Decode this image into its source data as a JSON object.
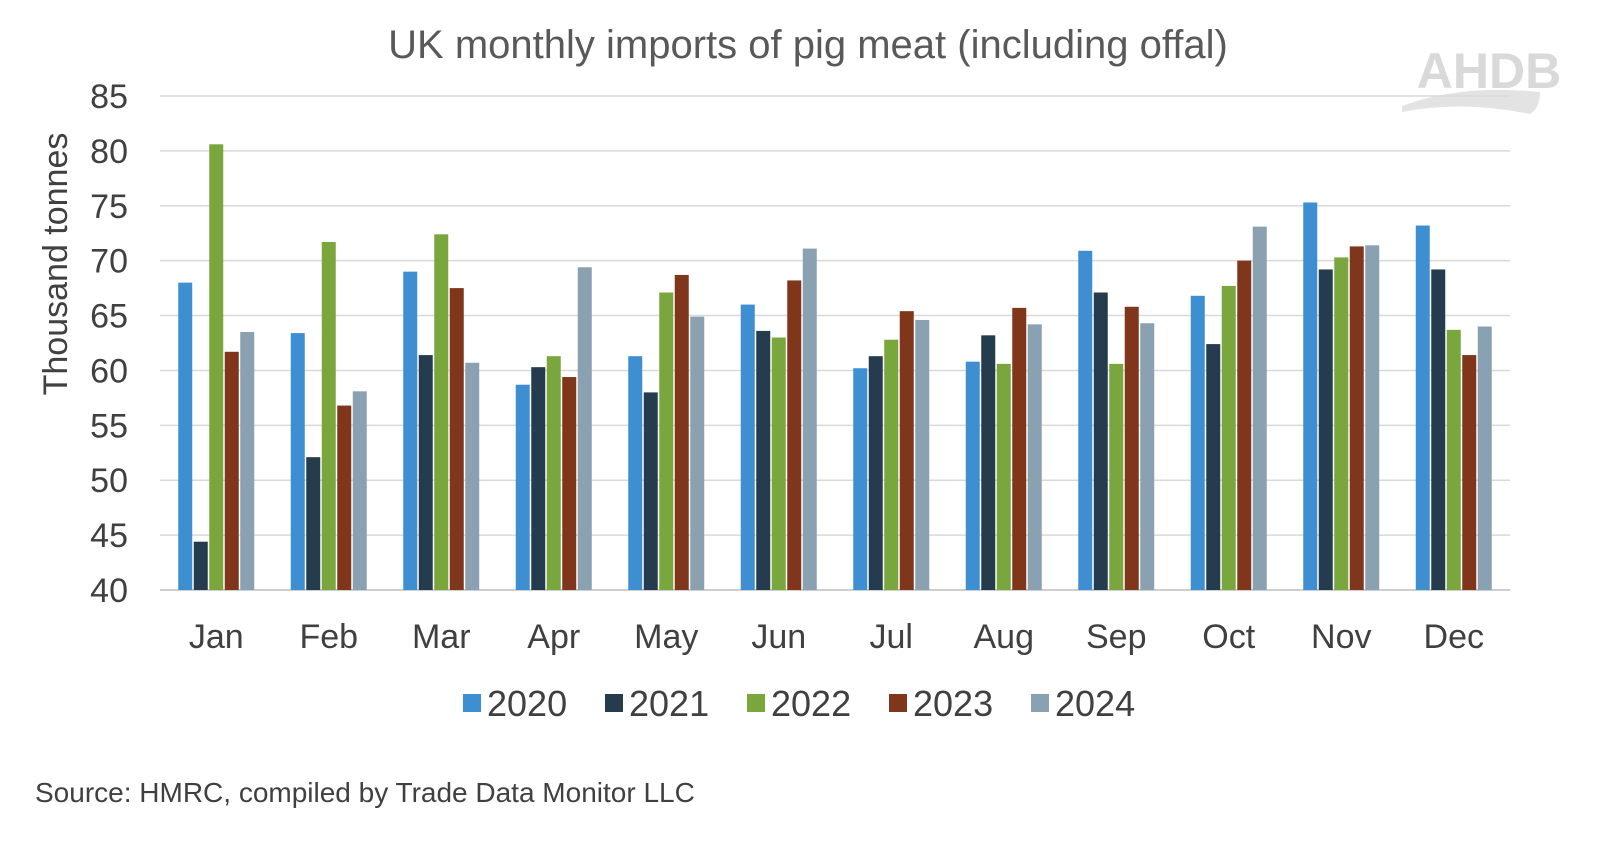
{
  "chart_data": {
    "type": "bar",
    "title": "UK monthly imports of pig meat (including offal)",
    "ylabel": "Thousand tonnes",
    "xlabel": "",
    "ylim": [
      40,
      85
    ],
    "yticks": [
      40,
      45,
      50,
      55,
      60,
      65,
      70,
      75,
      80,
      85
    ],
    "grid": true,
    "legend_position": "bottom",
    "categories": [
      "Jan",
      "Feb",
      "Mar",
      "Apr",
      "May",
      "Jun",
      "Jul",
      "Aug",
      "Sep",
      "Oct",
      "Nov",
      "Dec"
    ],
    "series": [
      {
        "name": "2020",
        "color": "#3d8fd1",
        "values": [
          68.0,
          63.4,
          69.0,
          58.7,
          61.3,
          66.0,
          60.2,
          60.8,
          70.9,
          66.8,
          75.3,
          73.2
        ]
      },
      {
        "name": "2021",
        "color": "#253c4e",
        "values": [
          44.4,
          52.1,
          61.4,
          60.3,
          58.0,
          63.6,
          61.3,
          63.2,
          67.1,
          62.4,
          69.2,
          69.2
        ]
      },
      {
        "name": "2022",
        "color": "#7aa63e",
        "values": [
          80.6,
          71.7,
          72.4,
          61.3,
          67.1,
          63.0,
          62.8,
          60.6,
          60.6,
          67.7,
          70.3,
          63.7
        ]
      },
      {
        "name": "2023",
        "color": "#80361b",
        "values": [
          61.7,
          56.8,
          67.5,
          59.4,
          68.7,
          68.2,
          65.4,
          65.7,
          65.8,
          70.0,
          71.3,
          61.4
        ]
      },
      {
        "name": "2024",
        "color": "#8aa1b1",
        "values": [
          63.5,
          58.1,
          60.7,
          69.4,
          64.9,
          71.1,
          64.6,
          64.2,
          64.3,
          73.1,
          71.4,
          64.0
        ]
      }
    ],
    "source": "Source: HMRC, compiled by Trade Data Monitor LLC",
    "logo": "AHDB"
  }
}
